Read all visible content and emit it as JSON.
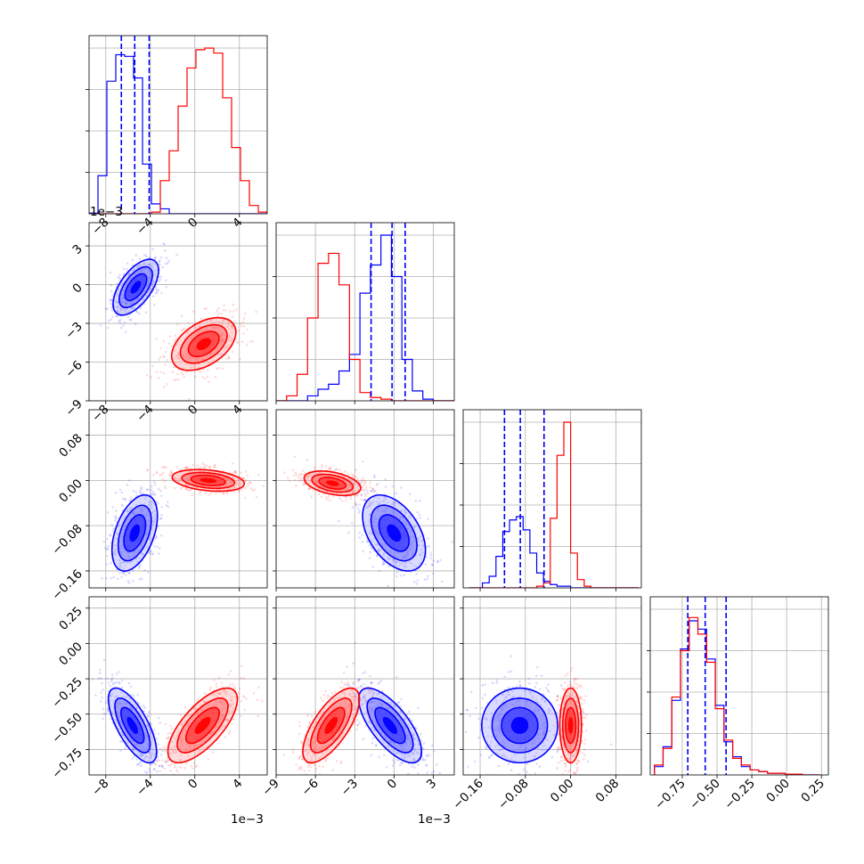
{
  "figure": {
    "type": "corner-plot",
    "offset_labels": {
      "p0": "1e−3",
      "p1": "1e−3"
    }
  },
  "colors": {
    "series_a": "#0000ff",
    "series_b": "#ff0000",
    "grid": "#b0b0b0",
    "quantile_line": "#0000ff"
  },
  "chart_data": [
    {
      "panel": "hist-p0",
      "type": "bar",
      "x_edges_start": -9.5,
      "bin_width": 0.8,
      "series": [
        {
          "color": "blue",
          "values": [
            0.004,
            0.23,
            0.8,
            0.96,
            0.95,
            0.82,
            0.3,
            0.06,
            0.03,
            0.0,
            0.0,
            0.0,
            0.0,
            0.0,
            0.0,
            0.0,
            0.0,
            0.0,
            0.0,
            0.0
          ]
        },
        {
          "color": "red",
          "values": [
            0,
            0,
            0,
            0,
            0,
            0,
            0,
            0.01,
            0.2,
            0.38,
            0.65,
            0.88,
            0.99,
            1.0,
            0.97,
            0.7,
            0.4,
            0.2,
            0.05,
            0.01
          ]
        }
      ],
      "quantiles": [
        -6.6,
        -5.4,
        -4.1
      ],
      "xlim": [
        -9.5,
        6.5
      ],
      "x_ticks": [
        -8,
        -4,
        0,
        4
      ],
      "scale_label": "1e−3"
    },
    {
      "panel": "scatter-p1-p0",
      "type": "scatter",
      "xlim": [
        -9.5,
        6.5
      ],
      "ylim": [
        -9,
        4.8
      ],
      "x_ticks": [
        -8,
        -4,
        0,
        4
      ],
      "y_ticks": [
        -9,
        -6,
        -3,
        0,
        3
      ],
      "clusters": [
        {
          "color": "blue",
          "center": [
            -5.3,
            -0.2
          ],
          "sd": [
            0.85,
            0.9
          ],
          "rho": 0.6
        },
        {
          "color": "red",
          "center": [
            0.8,
            -4.6
          ],
          "sd": [
            1.2,
            0.85
          ],
          "rho": 0.45
        }
      ]
    },
    {
      "panel": "hist-p1",
      "type": "bar",
      "x_edges_start": -9,
      "bin_width": 0.8,
      "series": [
        {
          "color": "blue",
          "values": [
            0,
            0,
            0,
            0.03,
            0.07,
            0.1,
            0.18,
            0.28,
            0.65,
            0.82,
            1.0,
            0.75,
            0.25,
            0.06,
            0.01,
            0,
            0
          ]
        },
        {
          "color": "red",
          "values": [
            0,
            0.03,
            0.16,
            0.5,
            0.83,
            0.89,
            0.7,
            0.25,
            0.05,
            0.02,
            0.01,
            0,
            0,
            0,
            0,
            0,
            0
          ]
        }
      ],
      "quantiles": [
        -1.75,
        -0.15,
        0.85
      ],
      "xlim": [
        -9,
        4.6
      ],
      "scale_label": "1e−3"
    },
    {
      "panel": "scatter-p2-p0",
      "type": "scatter",
      "xlim": [
        -9.5,
        6.5
      ],
      "ylim": [
        -0.19,
        0.125
      ],
      "y_ticks": [
        -0.16,
        -0.08,
        0.0,
        0.08
      ],
      "clusters": [
        {
          "color": "blue",
          "center": [
            -5.4,
            -0.093
          ],
          "sd": [
            0.85,
            0.028
          ],
          "rho": 0.45
        },
        {
          "color": "red",
          "center": [
            1.2,
            0.0
          ],
          "sd": [
            1.35,
            0.008
          ],
          "rho": -0.3
        }
      ]
    },
    {
      "panel": "scatter-p2-p1",
      "type": "scatter",
      "xlim": [
        -9,
        4.6
      ],
      "ylim": [
        -0.19,
        0.125
      ],
      "clusters": [
        {
          "color": "blue",
          "center": [
            0.0,
            -0.093
          ],
          "sd": [
            1.0,
            0.028
          ],
          "rho": -0.45
        },
        {
          "color": "red",
          "center": [
            -4.7,
            -0.005
          ],
          "sd": [
            0.9,
            0.009
          ],
          "rho": -0.4
        }
      ]
    },
    {
      "panel": "hist-p2",
      "type": "bar",
      "x_edges_start": -0.18,
      "bin_width": 0.012,
      "series": [
        {
          "color": "blue",
          "values": [
            0,
            0,
            0.03,
            0.07,
            0.19,
            0.34,
            0.41,
            0.43,
            0.35,
            0.21,
            0.09,
            0.04,
            0.02,
            0.01,
            0.01,
            0,
            0,
            0,
            0,
            0,
            0,
            0,
            0,
            0,
            0
          ]
        },
        {
          "color": "red",
          "values": [
            0,
            0,
            0,
            0,
            0,
            0,
            0,
            0,
            0,
            0,
            0.01,
            0.03,
            0.42,
            0.8,
            1.0,
            0.21,
            0.05,
            0.01,
            0,
            0,
            0,
            0,
            0,
            0,
            0
          ]
        }
      ],
      "quantiles": [
        -0.117,
        -0.089,
        -0.047
      ],
      "xlim": [
        -0.19,
        0.125
      ]
    },
    {
      "panel": "scatter-p3-p0",
      "type": "scatter",
      "xlim": [
        -9.5,
        6.5
      ],
      "ylim": [
        -0.93,
        0.33
      ],
      "x_ticks": [
        -8,
        -4,
        0,
        4
      ],
      "y_ticks": [
        -0.75,
        -0.5,
        -0.25,
        0.0,
        0.25
      ],
      "clusters": [
        {
          "color": "blue",
          "center": [
            -5.6,
            -0.58
          ],
          "sd": [
            0.9,
            0.11
          ],
          "rho": -0.7
        },
        {
          "color": "red",
          "center": [
            0.7,
            -0.58
          ],
          "sd": [
            1.3,
            0.11
          ],
          "rho": 0.7
        }
      ]
    },
    {
      "panel": "scatter-p3-p1",
      "type": "scatter",
      "xlim": [
        -9,
        4.6
      ],
      "ylim": [
        -0.93,
        0.33
      ],
      "x_ticks": [
        -9,
        -6,
        -3,
        0,
        3
      ],
      "clusters": [
        {
          "color": "blue",
          "center": [
            -0.3,
            -0.58
          ],
          "sd": [
            1.0,
            0.11
          ],
          "rho": -0.7
        },
        {
          "color": "red",
          "center": [
            -4.8,
            -0.58
          ],
          "sd": [
            0.9,
            0.11
          ],
          "rho": 0.7
        }
      ]
    },
    {
      "panel": "scatter-p3-p2",
      "type": "scatter",
      "xlim": [
        -0.19,
        0.125
      ],
      "ylim": [
        -0.93,
        0.33
      ],
      "x_ticks": [
        -0.16,
        -0.08,
        0.0,
        0.08
      ],
      "clusters": [
        {
          "color": "blue",
          "center": [
            -0.09,
            -0.58
          ],
          "sd": [
            0.028,
            0.11
          ],
          "rho": 0.0
        },
        {
          "color": "red",
          "center": [
            0.0,
            -0.58
          ],
          "sd": [
            0.008,
            0.11
          ],
          "rho": 0.0
        }
      ]
    },
    {
      "panel": "hist-p3",
      "type": "bar",
      "x_edges_start": -0.95,
      "bin_width": 0.0625,
      "series": [
        {
          "color": "blue",
          "values": [
            0.05,
            0.17,
            0.45,
            0.76,
            0.93,
            0.88,
            0.7,
            0.42,
            0.2,
            0.11,
            0.05,
            0.03,
            0.02,
            0.01,
            0.01,
            0.005,
            0.005,
            0.0,
            0.0
          ]
        },
        {
          "color": "red",
          "values": [
            0.06,
            0.16,
            0.47,
            0.75,
            0.95,
            0.85,
            0.68,
            0.4,
            0.21,
            0.1,
            0.06,
            0.03,
            0.02,
            0.01,
            0.01,
            0.005,
            0.005,
            0.0,
            0.0
          ]
        }
      ],
      "quantiles": [
        -0.71,
        -0.585,
        -0.435
      ],
      "xlim": [
        -0.98,
        0.3
      ],
      "x_ticks": [
        -0.75,
        -0.5,
        -0.25,
        0.0,
        0.25
      ]
    }
  ]
}
